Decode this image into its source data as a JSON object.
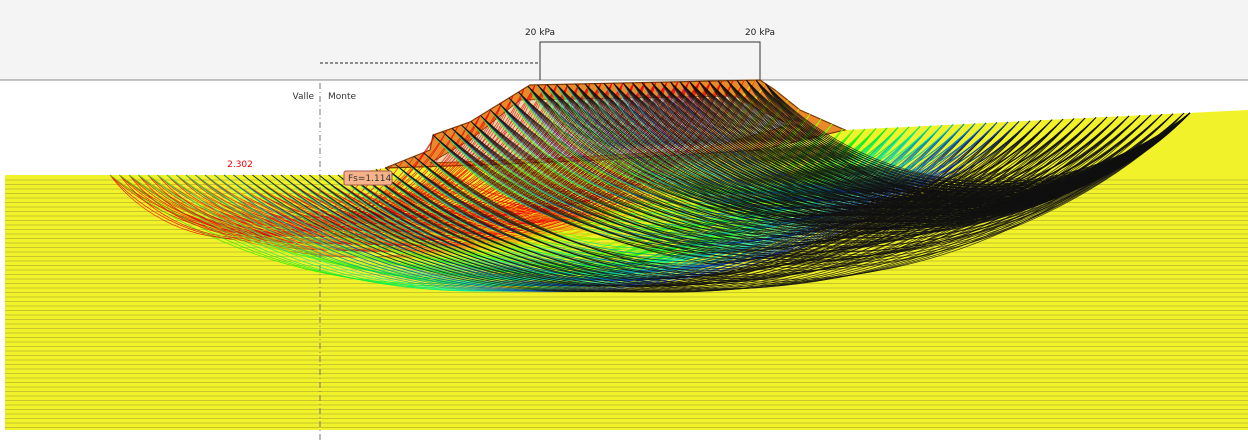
{
  "loads": [
    {
      "label": "20 kPa"
    },
    {
      "label": "20 kPa"
    }
  ],
  "zones": {
    "left": "Valle",
    "right": "Monte"
  },
  "annotations": {
    "max_fs": "2.302",
    "min_fs": "Fs=1.114"
  }
}
